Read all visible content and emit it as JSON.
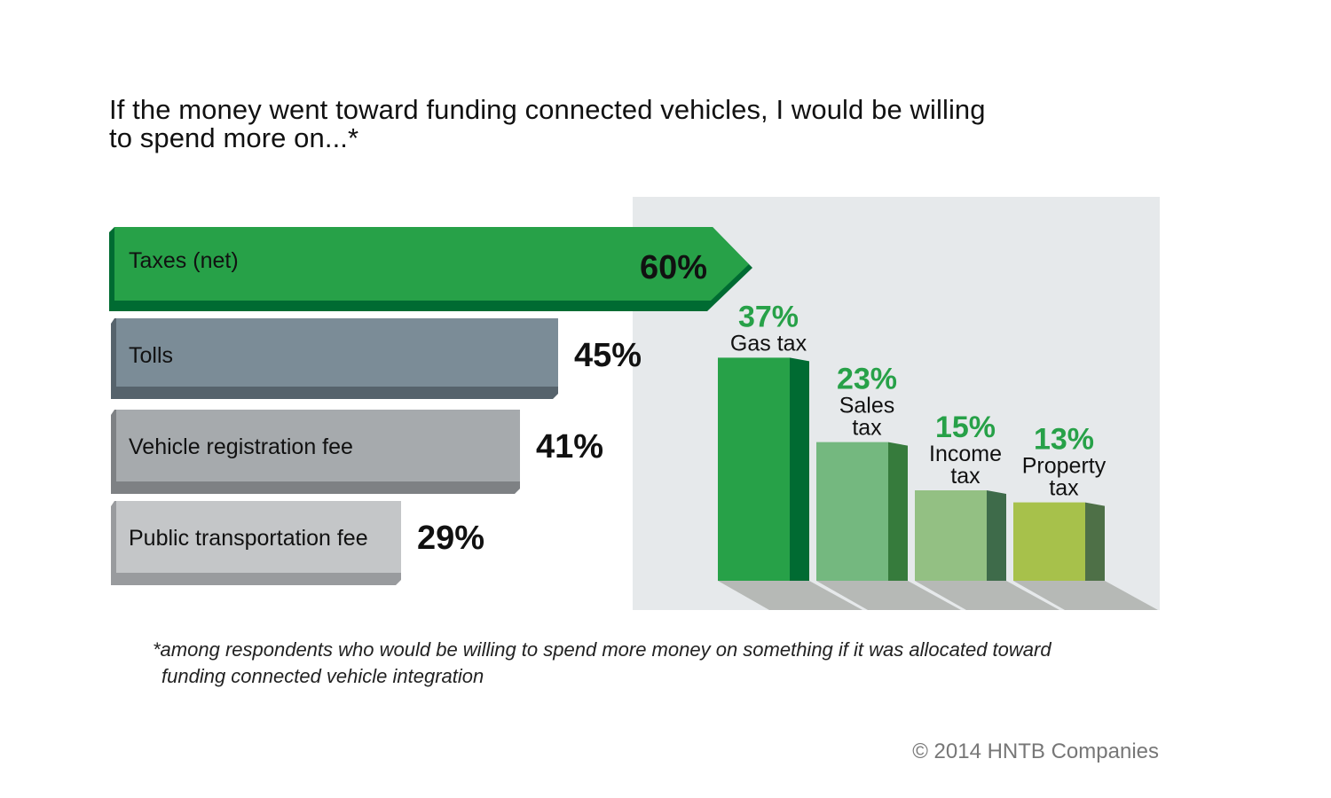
{
  "title_line1": "If the money went toward funding connected vehicles, I would be willing",
  "title_line2": "to spend more on...*",
  "footnote_line1": "*among respondents who would be willing to spend more money on something if it was allocated toward",
  "footnote_line2": "funding connected vehicle integration",
  "copyright": "© 2014 HNTB Companies",
  "chart_data": [
    {
      "type": "bar",
      "orientation": "horizontal",
      "categories": [
        "Taxes (net)",
        "Tolls",
        "Vehicle registration fee",
        "Public transportation fee"
      ],
      "values": [
        60,
        45,
        41,
        29
      ],
      "value_labels": [
        "60%",
        "45%",
        "41%",
        "29%"
      ],
      "colors": [
        "#27a148",
        "#7b8c97",
        "#a6aaad",
        "#c4c6c8"
      ],
      "shade_colors": [
        "#006b32",
        "#56636c",
        "#7e8184",
        "#999b9e"
      ]
    },
    {
      "type": "bar",
      "orientation": "vertical",
      "parent_category": "Taxes (net)",
      "categories": [
        "Gas tax",
        "Sales tax",
        "Income tax",
        "Property tax"
      ],
      "label_lines": [
        [
          "Gas tax"
        ],
        [
          "Sales",
          "tax"
        ],
        [
          "Income",
          "tax"
        ],
        [
          "Property",
          "tax"
        ]
      ],
      "values": [
        37,
        23,
        15,
        13
      ],
      "value_labels": [
        "37%",
        "23%",
        "15%",
        "13%"
      ],
      "colors": [
        "#27a148",
        "#74b87f",
        "#93c083",
        "#a7c14b"
      ],
      "shade_colors": [
        "#006b32",
        "#367b3c",
        "#3e6b4a",
        "#4e7047"
      ],
      "value_color": "#27a148",
      "panel_color": "#e6e9eb",
      "floor_color": "#b6b9b6"
    }
  ]
}
